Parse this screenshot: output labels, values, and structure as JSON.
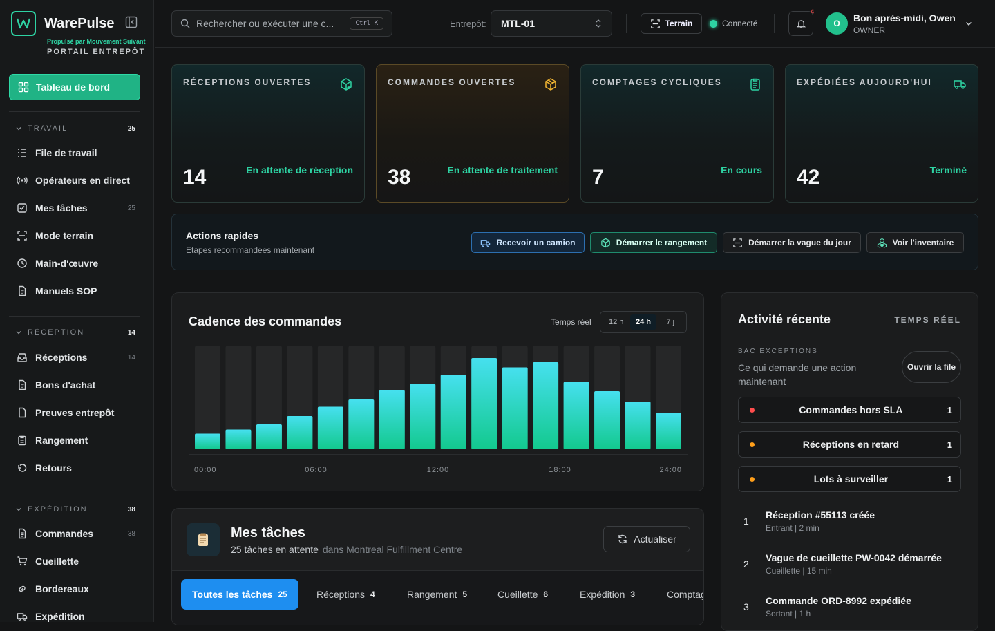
{
  "brand": {
    "name": "WarePulse",
    "powered": "Propulsé par Mouvement Suivant",
    "portal": "PORTAIL ENTREPÔT"
  },
  "sidebar": {
    "dashboard": "Tableau de bord",
    "sections": [
      {
        "title": "TRAVAIL",
        "count": "25",
        "items": [
          {
            "label": "File de travail",
            "icon": "list-icon",
            "count": ""
          },
          {
            "label": "Opérateurs en direct",
            "icon": "broadcast-icon",
            "count": ""
          },
          {
            "label": "Mes tâches",
            "icon": "checkbox-icon",
            "count": "25"
          },
          {
            "label": "Mode terrain",
            "icon": "scan-icon",
            "count": ""
          },
          {
            "label": "Main-d'œuvre",
            "icon": "clock-icon",
            "count": ""
          },
          {
            "label": "Manuels SOP",
            "icon": "document-icon",
            "count": ""
          }
        ]
      },
      {
        "title": "RÉCEPTION",
        "count": "14",
        "items": [
          {
            "label": "Réceptions",
            "icon": "inbox-icon",
            "count": "14"
          },
          {
            "label": "Bons d'achat",
            "icon": "document-icon",
            "count": ""
          },
          {
            "label": "Preuves entrepôt",
            "icon": "file-icon",
            "count": ""
          },
          {
            "label": "Rangement",
            "icon": "clipboard-icon",
            "count": ""
          },
          {
            "label": "Retours",
            "icon": "return-icon",
            "count": ""
          }
        ]
      },
      {
        "title": "EXPÉDITION",
        "count": "38",
        "items": [
          {
            "label": "Commandes",
            "icon": "document-icon",
            "count": "38"
          },
          {
            "label": "Cueillette",
            "icon": "cart-icon",
            "count": ""
          },
          {
            "label": "Bordereaux",
            "icon": "link-icon",
            "count": ""
          },
          {
            "label": "Expédition",
            "icon": "truck-icon",
            "count": ""
          }
        ]
      }
    ]
  },
  "topbar": {
    "search_placeholder": "Rechercher ou exécuter une c...",
    "shortcut": "Ctrl K",
    "warehouse_label": "Entrepôt:",
    "warehouse_value": "MTL-01",
    "terrain": "Terrain",
    "connection": "Connecté",
    "notifications": "4",
    "avatar_initial": "O",
    "greeting": "Bon après-midi, Owen",
    "role": "OWNER"
  },
  "kpis": [
    {
      "label": "RÉCEPTIONS OUVERTES",
      "value": "14",
      "status": "En attente de réception",
      "icon": "box-plus-icon"
    },
    {
      "label": "COMMANDES OUVERTES",
      "value": "38",
      "status": "En attente de traitement",
      "icon": "box-icon"
    },
    {
      "label": "COMPTAGES CYCLIQUES",
      "value": "7",
      "status": "En cours",
      "icon": "clipboard-list-icon"
    },
    {
      "label": "EXPÉDIÉES AUJOURD'HUI",
      "value": "42",
      "status": "Terminé",
      "icon": "truck-icon"
    }
  ],
  "quick_actions": {
    "title": "Actions rapides",
    "subtitle": "Etapes recommandees maintenant",
    "buttons": [
      "Recevoir un camion",
      "Démarrer le rangement",
      "Démarrer la vague du jour",
      "Voir l'inventaire"
    ]
  },
  "chart_data": {
    "type": "bar",
    "title": "Cadence des commandes",
    "realtime_label": "Temps réel",
    "ranges": [
      "12 h",
      "24 h",
      "7 j"
    ],
    "selected_range": "24 h",
    "x_ticks": [
      "00:00",
      "06:00",
      "12:00",
      "18:00",
      "24:00"
    ],
    "values": [
      15,
      19,
      24,
      32,
      41,
      48,
      57,
      63,
      72,
      88,
      79,
      84,
      65,
      56,
      46,
      35
    ],
    "ylim": [
      0,
      100
    ],
    "xlabel": "",
    "ylabel": "",
    "grid": false,
    "bar_color_top": "#46e0ef",
    "bar_color_bottom": "#13c98e"
  },
  "tasks": {
    "title": "Mes tâches",
    "pending": "25 tâches en attente",
    "location": "dans Montreal Fulfillment Centre",
    "refresh": "Actualiser",
    "tabs": [
      {
        "label": "Toutes les tâches",
        "count": "25"
      },
      {
        "label": "Réceptions",
        "count": "4"
      },
      {
        "label": "Rangement",
        "count": "5"
      },
      {
        "label": "Cueillette",
        "count": "6"
      },
      {
        "label": "Expédition",
        "count": "3"
      },
      {
        "label": "Comptages",
        "count": ""
      }
    ]
  },
  "activity": {
    "title": "Activité récente",
    "realtime": "TEMPS RÉEL",
    "bac_label": "BAC EXCEPTIONS",
    "bac_desc": "Ce qui demande une action maintenant",
    "open_queue": "Ouvrir la file",
    "exceptions": [
      {
        "label": "Commandes hors SLA",
        "count": "1",
        "color": "#ff4d4d"
      },
      {
        "label": "Réceptions en retard",
        "count": "1",
        "color": "#ff9f1a"
      },
      {
        "label": "Lots à surveiller",
        "count": "1",
        "color": "#ff9f1a"
      }
    ],
    "items": [
      {
        "n": "1",
        "title": "Réception #55113 créée",
        "meta": "Entrant | 2 min"
      },
      {
        "n": "2",
        "title": "Vague de cueillette PW-0042 démarrée",
        "meta": "Cueillette | 15 min"
      },
      {
        "n": "3",
        "title": "Commande ORD-8992 expédiée",
        "meta": "Sortant | 1 h"
      }
    ]
  }
}
